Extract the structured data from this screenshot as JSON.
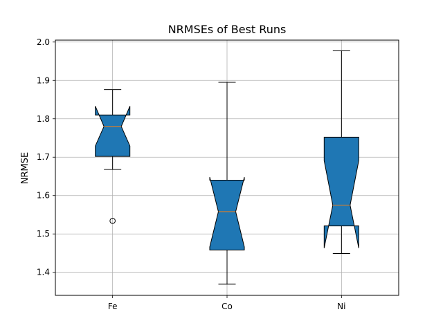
{
  "chart_data": {
    "type": "box",
    "title": "NRMSEs of Best Runs",
    "xlabel": "",
    "ylabel": "NRMSE",
    "ylim": [
      1.34,
      2.005
    ],
    "yticks": [
      1.4,
      1.5,
      1.6,
      1.7,
      1.8,
      1.9,
      2.0
    ],
    "ytick_labels": [
      "1.4",
      "1.5",
      "1.6",
      "1.7",
      "1.8",
      "1.9",
      "2.0"
    ],
    "grid": true,
    "notched": true,
    "box_color": "#1f77b4",
    "median_color": "#ff7f0e",
    "categories": [
      "Fe",
      "Co",
      "Ni"
    ],
    "boxes": [
      {
        "label": "Fe",
        "whisker_low": 1.668,
        "q1": 1.702,
        "median": 1.78,
        "q3": 1.81,
        "whisker_high": 1.876,
        "notch_low": 1.729,
        "notch_high": 1.833,
        "outliers": [
          1.534
        ]
      },
      {
        "label": "Co",
        "whisker_low": 1.369,
        "q1": 1.458,
        "median": 1.558,
        "q3": 1.64,
        "whisker_high": 1.895,
        "notch_low": 1.466,
        "notch_high": 1.648,
        "outliers": []
      },
      {
        "label": "Ni",
        "whisker_low": 1.449,
        "q1": 1.521,
        "median": 1.575,
        "q3": 1.752,
        "whisker_high": 1.977,
        "notch_low": 1.463,
        "notch_high": 1.691,
        "outliers": []
      }
    ]
  }
}
